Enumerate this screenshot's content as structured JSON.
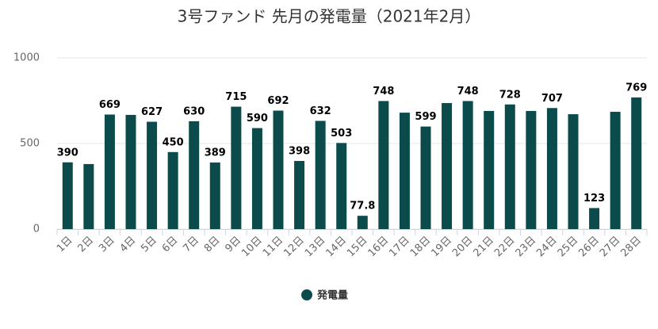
{
  "chart_data": {
    "type": "bar",
    "title": "3号ファンド 先月の発電量（2021年2月）",
    "categories": [
      "1日",
      "2日",
      "3日",
      "4日",
      "5日",
      "6日",
      "7日",
      "8日",
      "9日",
      "10日",
      "11日",
      "12日",
      "13日",
      "14日",
      "15日",
      "16日",
      "17日",
      "18日",
      "19日",
      "20日",
      "21日",
      "22日",
      "23日",
      "24日",
      "25日",
      "26日",
      "27日",
      "28日"
    ],
    "series": [
      {
        "name": "発電量",
        "color": "#0b4b4b",
        "values": [
          390,
          380,
          669,
          667,
          627,
          450,
          630,
          389,
          715,
          590,
          692,
          398,
          632,
          503,
          77.8,
          748,
          680,
          599,
          736,
          748,
          690,
          728,
          690,
          707,
          671,
          123,
          685,
          769
        ],
        "value_labels": [
          "390",
          null,
          "669",
          null,
          "627",
          "450",
          "630",
          "389",
          "715",
          "590",
          "692",
          "398",
          "632",
          "503",
          "77.8",
          "748",
          null,
          "599",
          null,
          "748",
          null,
          "728",
          null,
          "707",
          null,
          "123",
          null,
          "769"
        ]
      }
    ],
    "ylim": [
      0,
      1000
    ],
    "yticks": [
      0,
      500,
      1000
    ],
    "grid": true,
    "legend": "bottom"
  }
}
